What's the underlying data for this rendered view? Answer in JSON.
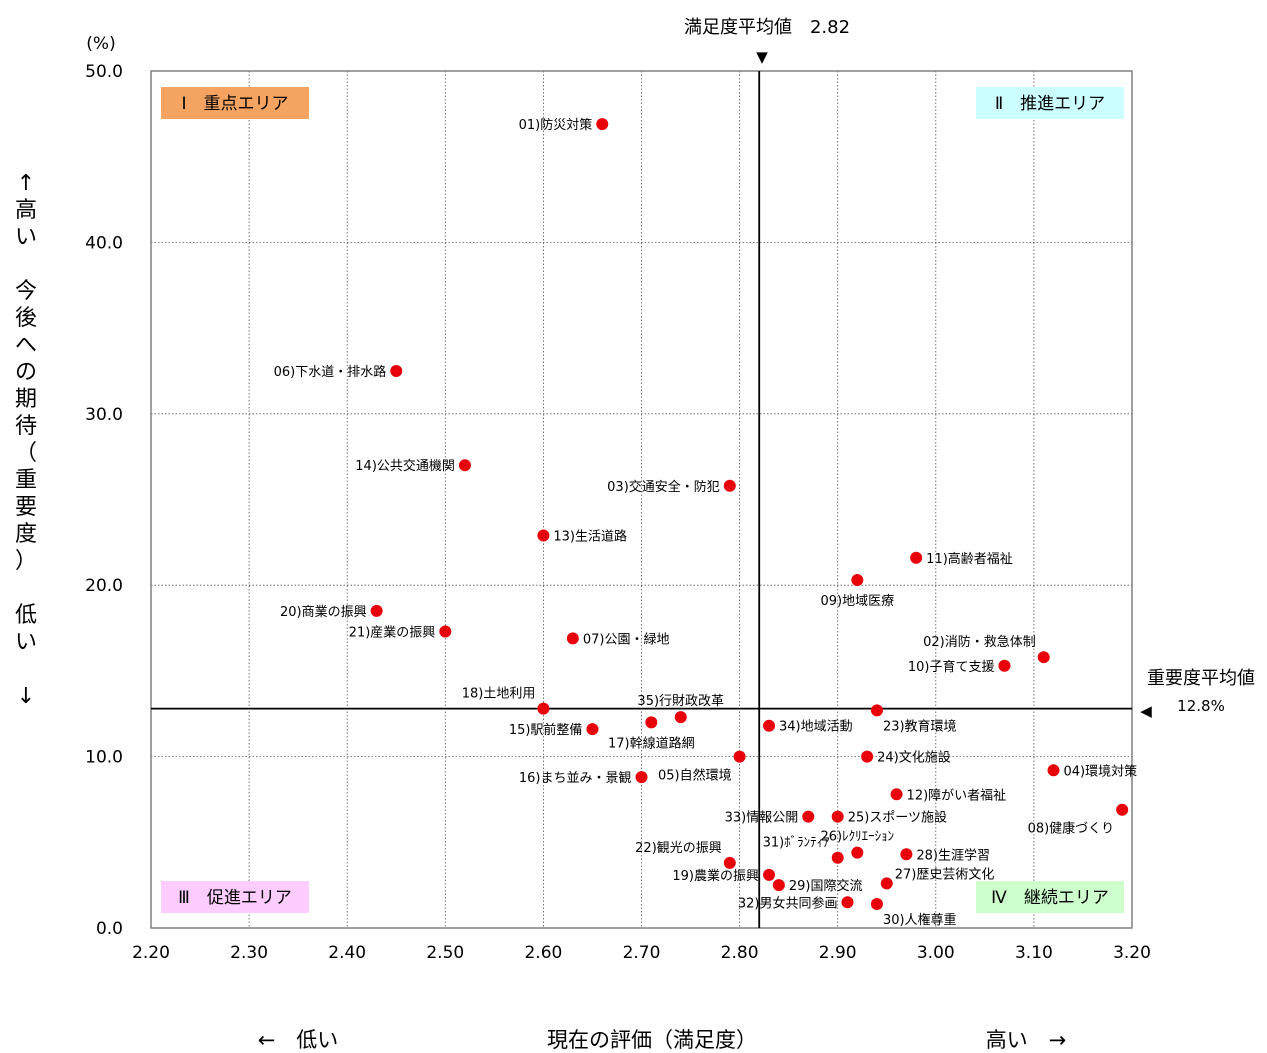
{
  "chart_data": {
    "type": "scatter",
    "xlabel": "現在の評価（満足度）",
    "x_low_label": "←　低い",
    "x_high_label": "高い　→",
    "ylabel_chars": [
      "↑",
      "高",
      "い",
      "",
      "今",
      "後",
      "へ",
      "の",
      "期",
      "待",
      "（",
      "重",
      "要",
      "度",
      "）",
      "",
      "低",
      "い",
      "",
      "↓"
    ],
    "y_unit": "(%)",
    "xlim": [
      2.2,
      3.2
    ],
    "ylim": [
      0,
      50
    ],
    "x_ticks": [
      2.2,
      2.3,
      2.4,
      2.5,
      2.6,
      2.7,
      2.8,
      2.9,
      3.0,
      3.1,
      3.2
    ],
    "x_tick_labels": [
      "2.20",
      "2.30",
      "2.40",
      "2.50",
      "2.60",
      "2.70",
      "2.80",
      "2.90",
      "3.00",
      "3.10",
      "3.20"
    ],
    "y_ticks": [
      0,
      10,
      20,
      30,
      40,
      50
    ],
    "y_tick_labels": [
      "0.0",
      "10.0",
      "20.0",
      "30.0",
      "40.0",
      "50.0"
    ],
    "grid": true,
    "point_color": "#e8000b",
    "mean_x": 2.82,
    "mean_x_label": "満足度平均値　2.82",
    "mean_x_marker": "▼",
    "mean_y": 12.8,
    "mean_y_label": "重要度平均値",
    "mean_y_value_label": "12.8%",
    "mean_y_marker": "◀",
    "quadrants": [
      {
        "label": "Ⅰ　重点エリア",
        "color": "#f4a460",
        "position": "top-left"
      },
      {
        "label": "Ⅱ　推進エリア",
        "color": "#ccffff",
        "position": "top-right"
      },
      {
        "label": "Ⅲ　促進エリア",
        "color": "#ffccff",
        "position": "bottom-left"
      },
      {
        "label": "Ⅳ　継続エリア",
        "color": "#ccffcc",
        "position": "bottom-right"
      }
    ],
    "points": [
      {
        "label": "01)防災対策",
        "x": 2.66,
        "y": 46.9,
        "side": "left"
      },
      {
        "label": "02)消防・救急体制",
        "x": 3.11,
        "y": 15.8,
        "side": "above-left"
      },
      {
        "label": "03)交通安全・防犯",
        "x": 2.79,
        "y": 25.8,
        "side": "left"
      },
      {
        "label": "04)環境対策",
        "x": 3.12,
        "y": 9.2,
        "side": "right"
      },
      {
        "label": "05)自然環境",
        "x": 2.8,
        "y": 10.0,
        "side": "below-left"
      },
      {
        "label": "06)下水道・排水路",
        "x": 2.45,
        "y": 32.5,
        "side": "left"
      },
      {
        "label": "07)公園・緑地",
        "x": 2.63,
        "y": 16.9,
        "side": "right"
      },
      {
        "label": "08)健康づくり",
        "x": 3.19,
        "y": 6.9,
        "side": "below-left"
      },
      {
        "label": "09)地域医療",
        "x": 2.92,
        "y": 20.3,
        "side": "below"
      },
      {
        "label": "10)子育て支援",
        "x": 3.07,
        "y": 15.3,
        "side": "left"
      },
      {
        "label": "11)高齢者福祉",
        "x": 2.98,
        "y": 21.6,
        "side": "right"
      },
      {
        "label": "12)障がい者福祉",
        "x": 2.96,
        "y": 7.8,
        "side": "right"
      },
      {
        "label": "13)生活道路",
        "x": 2.6,
        "y": 22.9,
        "side": "right"
      },
      {
        "label": "14)公共交通機関",
        "x": 2.52,
        "y": 27.0,
        "side": "left"
      },
      {
        "label": "15)駅前整備",
        "x": 2.65,
        "y": 11.6,
        "side": "left"
      },
      {
        "label": "16)まち並み・景観",
        "x": 2.7,
        "y": 8.8,
        "side": "left"
      },
      {
        "label": "17)幹線道路網",
        "x": 2.71,
        "y": 12.0,
        "side": "below"
      },
      {
        "label": "18)土地利用",
        "x": 2.6,
        "y": 12.8,
        "side": "above-left"
      },
      {
        "label": "19)農業の振興",
        "x": 2.83,
        "y": 3.1,
        "side": "left"
      },
      {
        "label": "20)商業の振興",
        "x": 2.43,
        "y": 18.5,
        "side": "left"
      },
      {
        "label": "21)産業の振興",
        "x": 2.5,
        "y": 17.3,
        "side": "left"
      },
      {
        "label": "22)観光の振興",
        "x": 2.79,
        "y": 3.8,
        "side": "above-left"
      },
      {
        "label": "23)教育環境",
        "x": 2.94,
        "y": 12.7,
        "side": "below-right"
      },
      {
        "label": "24)文化施設",
        "x": 2.93,
        "y": 10.0,
        "side": "right"
      },
      {
        "label": "25)スポーツ施設",
        "x": 2.9,
        "y": 6.5,
        "side": "right"
      },
      {
        "label": "26)ﾚｸﾘｴｰｼｮﾝ",
        "x": 2.92,
        "y": 4.4,
        "side": "above"
      },
      {
        "label": "27)歴史芸術文化",
        "x": 2.95,
        "y": 2.6,
        "side": "above-right"
      },
      {
        "label": "28)生涯学習",
        "x": 2.97,
        "y": 4.3,
        "side": "right"
      },
      {
        "label": "29)国際交流",
        "x": 2.84,
        "y": 2.5,
        "side": "right"
      },
      {
        "label": "30)人権尊重",
        "x": 2.94,
        "y": 1.4,
        "side": "below-right"
      },
      {
        "label": "31)ﾎﾞﾗﾝﾃｨｱ",
        "x": 2.9,
        "y": 4.1,
        "side": "above-left"
      },
      {
        "label": "32)男女共同参画",
        "x": 2.91,
        "y": 1.5,
        "side": "left"
      },
      {
        "label": "33)情報公開",
        "x": 2.87,
        "y": 6.5,
        "side": "left"
      },
      {
        "label": "34)地域活動",
        "x": 2.83,
        "y": 11.8,
        "side": "right"
      },
      {
        "label": "35)行財政改革",
        "x": 2.74,
        "y": 12.3,
        "side": "above"
      }
    ]
  }
}
